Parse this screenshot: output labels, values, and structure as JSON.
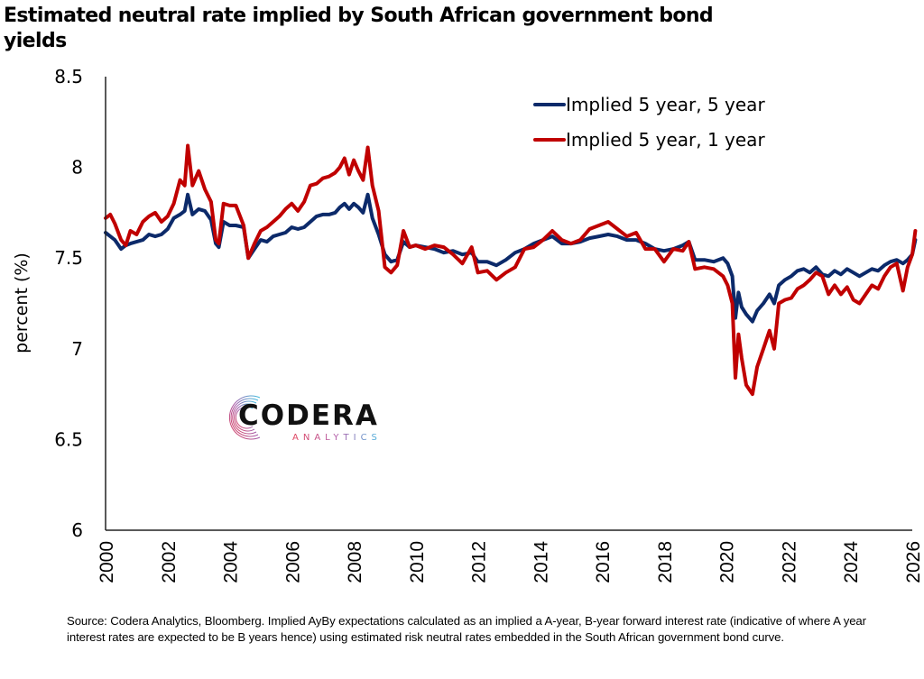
{
  "title": "Estimated neutral rate implied by South African government bond yields",
  "footer": "Source: Codera Analytics, Bloomberg. Implied AyBy expectations calculated as an implied a A-year, B-year forward interest rate (indicative of where A year interest rates are expected to be B years hence) using estimated risk neutral rates embedded in the South African government bond curve.",
  "logo": {
    "name": "CODERA",
    "sub": "ANALYTICS"
  },
  "colors": {
    "series_5y5y": "#0c2a6a",
    "series_5y1y": "#c00000",
    "axis": "#222222"
  },
  "chart_data": {
    "type": "line",
    "title": "Estimated neutral rate implied by South African government bond yields",
    "xlabel": "",
    "ylabel": "percent (%)",
    "xlim": [
      2000,
      2026
    ],
    "ylim": [
      6,
      8.5
    ],
    "x_ticks": [
      "2000",
      "2002",
      "2004",
      "2006",
      "2008",
      "2010",
      "2012",
      "2014",
      "2016",
      "2018",
      "2020",
      "2022",
      "2024",
      "2026"
    ],
    "y_ticks": [
      "6",
      "6.5",
      "7",
      "7.5",
      "8",
      "8.5"
    ],
    "grid": false,
    "legend_position": "top-right",
    "series": [
      {
        "name": "Implied 5 year, 5 year",
        "color": "#0c2a6a",
        "x": [
          2000.0,
          2000.15,
          2000.3,
          2000.5,
          2000.65,
          2000.8,
          2001.0,
          2001.2,
          2001.4,
          2001.6,
          2001.8,
          2002.0,
          2002.2,
          2002.4,
          2002.55,
          2002.65,
          2002.8,
          2003.0,
          2003.2,
          2003.4,
          2003.55,
          2003.65,
          2003.8,
          2004.0,
          2004.2,
          2004.45,
          2004.6,
          2004.8,
          2005.0,
          2005.2,
          2005.4,
          2005.6,
          2005.8,
          2006.0,
          2006.2,
          2006.4,
          2006.6,
          2006.8,
          2007.0,
          2007.2,
          2007.4,
          2007.55,
          2007.7,
          2007.85,
          2008.0,
          2008.15,
          2008.3,
          2008.45,
          2008.6,
          2008.8,
          2009.0,
          2009.2,
          2009.4,
          2009.6,
          2009.8,
          2010.0,
          2010.3,
          2010.6,
          2010.9,
          2011.2,
          2011.5,
          2011.8,
          2012.0,
          2012.3,
          2012.6,
          2012.9,
          2013.2,
          2013.5,
          2013.8,
          2014.1,
          2014.4,
          2014.7,
          2015.0,
          2015.3,
          2015.6,
          2015.9,
          2016.2,
          2016.5,
          2016.8,
          2017.1,
          2017.4,
          2017.7,
          2018.0,
          2018.3,
          2018.6,
          2018.8,
          2019.0,
          2019.3,
          2019.6,
          2019.9,
          2020.05,
          2020.2,
          2020.3,
          2020.4,
          2020.5,
          2020.65,
          2020.85,
          2021.0,
          2021.2,
          2021.4,
          2021.55,
          2021.7,
          2021.9,
          2022.1,
          2022.3,
          2022.5,
          2022.7,
          2022.9,
          2023.1,
          2023.3,
          2023.5,
          2023.7,
          2023.9,
          2024.1,
          2024.3,
          2024.5,
          2024.7,
          2024.9,
          2025.1,
          2025.3,
          2025.5,
          2025.7,
          2025.85,
          2026.0,
          2026.1
        ],
        "values": [
          7.64,
          7.62,
          7.6,
          7.55,
          7.57,
          7.58,
          7.59,
          7.6,
          7.63,
          7.62,
          7.63,
          7.66,
          7.72,
          7.74,
          7.76,
          7.85,
          7.74,
          7.77,
          7.76,
          7.71,
          7.58,
          7.56,
          7.7,
          7.68,
          7.68,
          7.67,
          7.5,
          7.55,
          7.6,
          7.59,
          7.62,
          7.63,
          7.64,
          7.67,
          7.66,
          7.67,
          7.7,
          7.73,
          7.74,
          7.74,
          7.75,
          7.78,
          7.8,
          7.77,
          7.8,
          7.78,
          7.75,
          7.85,
          7.72,
          7.63,
          7.52,
          7.48,
          7.49,
          7.59,
          7.56,
          7.57,
          7.56,
          7.55,
          7.53,
          7.54,
          7.52,
          7.53,
          7.48,
          7.48,
          7.46,
          7.49,
          7.53,
          7.55,
          7.58,
          7.6,
          7.62,
          7.58,
          7.58,
          7.59,
          7.61,
          7.62,
          7.63,
          7.62,
          7.6,
          7.6,
          7.58,
          7.55,
          7.54,
          7.55,
          7.57,
          7.59,
          7.49,
          7.49,
          7.48,
          7.5,
          7.47,
          7.4,
          7.17,
          7.31,
          7.23,
          7.19,
          7.15,
          7.21,
          7.25,
          7.3,
          7.25,
          7.35,
          7.38,
          7.4,
          7.43,
          7.44,
          7.42,
          7.45,
          7.41,
          7.4,
          7.43,
          7.41,
          7.44,
          7.42,
          7.4,
          7.42,
          7.44,
          7.43,
          7.46,
          7.48,
          7.49,
          7.47,
          7.49,
          7.52,
          7.6
        ]
      },
      {
        "name": "Implied 5 year, 1 year",
        "color": "#c00000",
        "x": [
          2000.0,
          2000.15,
          2000.3,
          2000.5,
          2000.65,
          2000.8,
          2001.0,
          2001.2,
          2001.4,
          2001.6,
          2001.8,
          2002.0,
          2002.2,
          2002.4,
          2002.55,
          2002.65,
          2002.8,
          2003.0,
          2003.2,
          2003.4,
          2003.55,
          2003.65,
          2003.8,
          2004.0,
          2004.2,
          2004.45,
          2004.6,
          2004.8,
          2005.0,
          2005.2,
          2005.4,
          2005.6,
          2005.8,
          2006.0,
          2006.2,
          2006.4,
          2006.6,
          2006.8,
          2007.0,
          2007.2,
          2007.4,
          2007.55,
          2007.7,
          2007.85,
          2008.0,
          2008.15,
          2008.3,
          2008.45,
          2008.6,
          2008.8,
          2009.0,
          2009.2,
          2009.4,
          2009.6,
          2009.8,
          2010.0,
          2010.3,
          2010.6,
          2010.9,
          2011.2,
          2011.5,
          2011.8,
          2012.0,
          2012.3,
          2012.6,
          2012.9,
          2013.2,
          2013.5,
          2013.8,
          2014.1,
          2014.4,
          2014.7,
          2015.0,
          2015.3,
          2015.6,
          2015.9,
          2016.2,
          2016.5,
          2016.8,
          2017.1,
          2017.4,
          2017.7,
          2018.0,
          2018.3,
          2018.6,
          2018.8,
          2019.0,
          2019.3,
          2019.6,
          2019.9,
          2020.05,
          2020.2,
          2020.3,
          2020.4,
          2020.5,
          2020.65,
          2020.85,
          2021.0,
          2021.2,
          2021.4,
          2021.55,
          2021.7,
          2021.9,
          2022.1,
          2022.3,
          2022.5,
          2022.7,
          2022.9,
          2023.1,
          2023.3,
          2023.5,
          2023.7,
          2023.9,
          2024.1,
          2024.3,
          2024.5,
          2024.7,
          2024.9,
          2025.1,
          2025.3,
          2025.5,
          2025.7,
          2025.85,
          2026.0,
          2026.1
        ],
        "values": [
          7.72,
          7.74,
          7.69,
          7.6,
          7.57,
          7.65,
          7.63,
          7.7,
          7.73,
          7.75,
          7.7,
          7.73,
          7.8,
          7.93,
          7.9,
          8.12,
          7.9,
          7.98,
          7.88,
          7.81,
          7.6,
          7.58,
          7.8,
          7.79,
          7.79,
          7.68,
          7.5,
          7.58,
          7.65,
          7.67,
          7.7,
          7.73,
          7.77,
          7.8,
          7.76,
          7.81,
          7.9,
          7.91,
          7.94,
          7.95,
          7.97,
          8.0,
          8.05,
          7.96,
          8.04,
          7.98,
          7.93,
          8.11,
          7.9,
          7.76,
          7.45,
          7.42,
          7.46,
          7.65,
          7.56,
          7.57,
          7.55,
          7.57,
          7.56,
          7.52,
          7.47,
          7.56,
          7.42,
          7.43,
          7.38,
          7.42,
          7.45,
          7.55,
          7.56,
          7.6,
          7.65,
          7.6,
          7.58,
          7.6,
          7.66,
          7.68,
          7.7,
          7.66,
          7.62,
          7.64,
          7.55,
          7.55,
          7.48,
          7.55,
          7.54,
          7.59,
          7.44,
          7.45,
          7.44,
          7.4,
          7.35,
          7.25,
          6.84,
          7.08,
          6.95,
          6.8,
          6.75,
          6.9,
          7.0,
          7.1,
          7.0,
          7.25,
          7.27,
          7.28,
          7.33,
          7.35,
          7.38,
          7.42,
          7.4,
          7.3,
          7.35,
          7.3,
          7.34,
          7.27,
          7.25,
          7.3,
          7.35,
          7.33,
          7.4,
          7.45,
          7.47,
          7.32,
          7.45,
          7.52,
          7.65
        ]
      }
    ]
  }
}
